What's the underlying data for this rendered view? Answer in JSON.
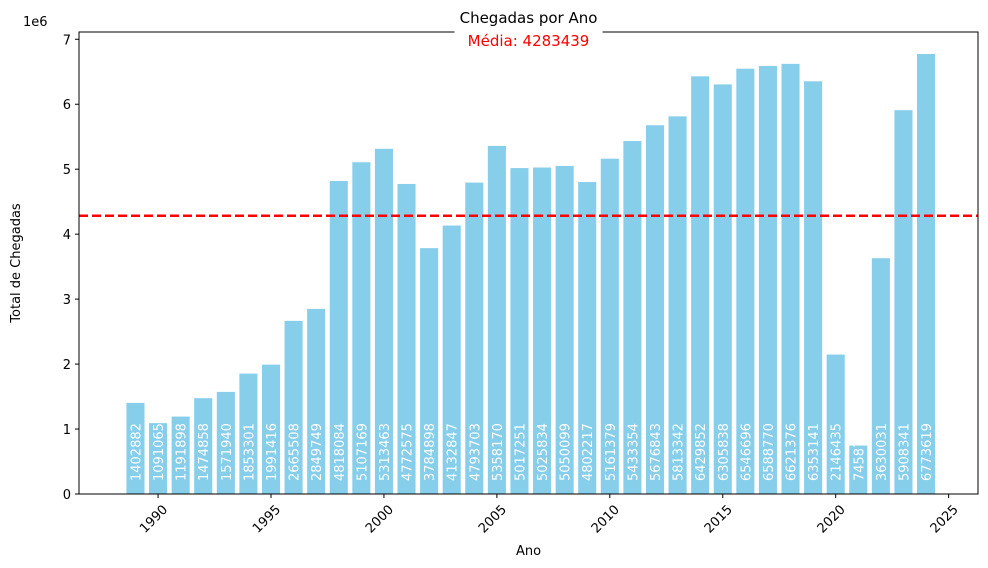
{
  "chart_data": {
    "type": "bar",
    "title": "Chegadas por Ano",
    "xlabel": "Ano",
    "ylabel": "Total de Chegadas",
    "y_scale_label": "1e6",
    "mean_label": "Média: 4283439",
    "mean_value": 4283439,
    "bar_color": "#87ceeb",
    "mean_color": "#ff0000",
    "xlim": [
      1986.5,
      2026.3
    ],
    "ylim": [
      0,
      7112000
    ],
    "x_ticks": [
      1990,
      1995,
      2000,
      2005,
      2010,
      2015,
      2020,
      2025
    ],
    "y_ticks": [
      0,
      1000000,
      2000000,
      3000000,
      4000000,
      5000000,
      6000000,
      7000000
    ],
    "y_tick_labels": [
      "0",
      "1",
      "2",
      "3",
      "4",
      "5",
      "6",
      "7"
    ],
    "grid": false,
    "x": [
      1989,
      1990,
      1991,
      1992,
      1993,
      1994,
      1995,
      1996,
      1997,
      1998,
      1999,
      2000,
      2001,
      2002,
      2003,
      2004,
      2005,
      2006,
      2007,
      2008,
      2009,
      2010,
      2011,
      2012,
      2013,
      2014,
      2015,
      2016,
      2017,
      2018,
      2019,
      2020,
      2021,
      2022,
      2023,
      2024
    ],
    "values": [
      1402882,
      1091065,
      1191898,
      1474858,
      1571940,
      1853301,
      1991416,
      2665508,
      2849749,
      4818084,
      5107169,
      5313463,
      4772575,
      3784898,
      4132847,
      4793703,
      5358170,
      5017251,
      5025834,
      5050099,
      4802217,
      5161379,
      5433354,
      5676843,
      5813342,
      6429852,
      6305838,
      6546696,
      6588770,
      6621376,
      6353141,
      2146435,
      745871,
      3630031,
      5908341,
      6773619
    ],
    "data_labels": [
      "1402882",
      "1091065",
      "1191898",
      "1474858",
      "1571940",
      "1853301",
      "1991416",
      "2665508",
      "2849749",
      "4818084",
      "5107169",
      "5313463",
      "4772575",
      "3784898",
      "4132847",
      "4793703",
      "5358170",
      "5017251",
      "5025834",
      "5050099",
      "4802217",
      "5161379",
      "5433354",
      "5676843",
      "5813342",
      "6429852",
      "6305838",
      "6546696",
      "6588770",
      "6621376",
      "6353141",
      "2146435",
      "745871",
      "3630031",
      "5908341",
      "6773619"
    ]
  }
}
